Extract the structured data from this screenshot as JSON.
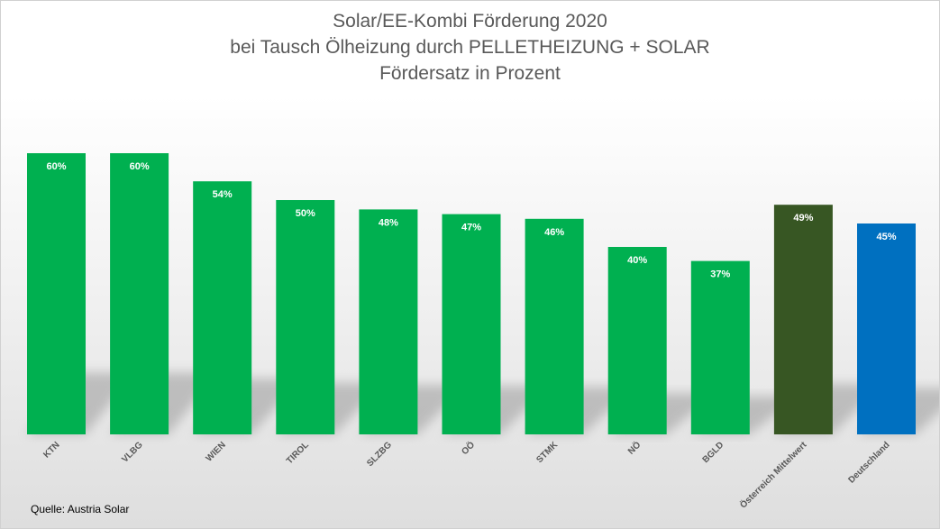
{
  "chart_data": {
    "type": "bar",
    "title": "Solar/EE-Kombi Förderung 2020",
    "subtitle": "bei Tausch Ölheizung durch PELLETHEIZUNG + SOLAR",
    "subtitle2": "Fördersatz in Prozent",
    "categories": [
      "KTN",
      "VLBG",
      "WIEN",
      "TIROL",
      "SLZBG",
      "OÖ",
      "STMK",
      "NÖ",
      "BGLD",
      "Österreich Mittelwert",
      "Deutschland"
    ],
    "values": [
      60,
      60,
      54,
      50,
      48,
      47,
      46,
      40,
      37,
      49,
      45
    ],
    "value_labels": [
      "60%",
      "60%",
      "54%",
      "50%",
      "48%",
      "47%",
      "46%",
      "40%",
      "37%",
      "49%",
      "45%"
    ],
    "bar_colors": [
      "#00b050",
      "#00b050",
      "#00b050",
      "#00b050",
      "#00b050",
      "#00b050",
      "#00b050",
      "#00b050",
      "#00b050",
      "#375623",
      "#0070c0"
    ],
    "ylim": [
      0,
      100
    ],
    "grid": false,
    "legend": "none"
  },
  "footer": {
    "source": "Quelle: Austria Solar"
  }
}
